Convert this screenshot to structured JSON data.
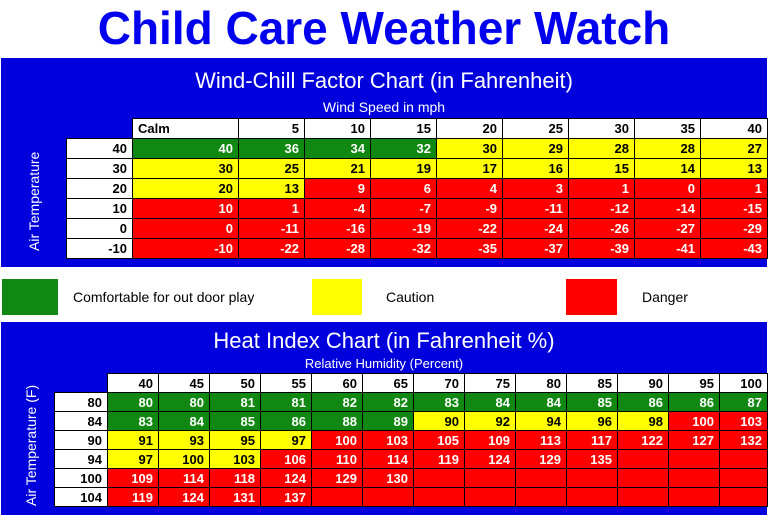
{
  "title": "Child Care Weather Watch",
  "colors": {
    "comfortable": "#118811",
    "caution": "#ffff00",
    "danger": "#ff0000",
    "header_blue": "#0000dd"
  },
  "wind_chill": {
    "title": "Wind-Chill Factor Chart (in Fahrenheit)",
    "subtitle": "Wind Speed in mph",
    "row_label": "Air Temperature",
    "columns": [
      "Calm",
      "5",
      "10",
      "15",
      "20",
      "25",
      "30",
      "35",
      "40"
    ],
    "rows": [
      {
        "temp": "40",
        "values": [
          "40",
          "36",
          "34",
          "32",
          "30",
          "29",
          "28",
          "28",
          "27"
        ],
        "levels": [
          "g",
          "g",
          "g",
          "g",
          "y",
          "y",
          "y",
          "y",
          "y"
        ]
      },
      {
        "temp": "30",
        "values": [
          "30",
          "25",
          "21",
          "19",
          "17",
          "16",
          "15",
          "14",
          "13"
        ],
        "levels": [
          "y",
          "y",
          "y",
          "y",
          "y",
          "y",
          "y",
          "y",
          "y"
        ]
      },
      {
        "temp": "20",
        "values": [
          "20",
          "13",
          "9",
          "6",
          "4",
          "3",
          "1",
          "0",
          "1"
        ],
        "levels": [
          "y",
          "y",
          "r",
          "r",
          "r",
          "r",
          "r",
          "r",
          "r"
        ]
      },
      {
        "temp": "10",
        "values": [
          "10",
          "1",
          "-4",
          "-7",
          "-9",
          "-11",
          "-12",
          "-14",
          "-15"
        ],
        "levels": [
          "r",
          "r",
          "r",
          "r",
          "r",
          "r",
          "r",
          "r",
          "r"
        ]
      },
      {
        "temp": "0",
        "values": [
          "0",
          "-11",
          "-16",
          "-19",
          "-22",
          "-24",
          "-26",
          "-27",
          "-29"
        ],
        "levels": [
          "r",
          "r",
          "r",
          "r",
          "r",
          "r",
          "r",
          "r",
          "r"
        ]
      },
      {
        "temp": "-10",
        "values": [
          "-10",
          "-22",
          "-28",
          "-32",
          "-35",
          "-37",
          "-39",
          "-41",
          "-43"
        ],
        "levels": [
          "r",
          "r",
          "r",
          "r",
          "r",
          "r",
          "r",
          "r",
          "r"
        ]
      }
    ]
  },
  "legend": {
    "comfortable": "Comfortable for out door play",
    "caution": "Caution",
    "danger": "Danger"
  },
  "heat_index": {
    "title": "Heat Index Chart (in Fahrenheit %)",
    "subtitle": "Relative Humidity (Percent)",
    "row_label": "Air Temperature (F)",
    "columns": [
      "40",
      "45",
      "50",
      "55",
      "60",
      "65",
      "70",
      "75",
      "80",
      "85",
      "90",
      "95",
      "100"
    ],
    "rows": [
      {
        "temp": "80",
        "values": [
          "80",
          "80",
          "81",
          "81",
          "82",
          "82",
          "83",
          "84",
          "84",
          "85",
          "86",
          "86",
          "87"
        ],
        "levels": [
          "g",
          "g",
          "g",
          "g",
          "g",
          "g",
          "g",
          "g",
          "g",
          "g",
          "g",
          "g",
          "g"
        ]
      },
      {
        "temp": "84",
        "values": [
          "83",
          "84",
          "85",
          "86",
          "88",
          "89",
          "90",
          "92",
          "94",
          "96",
          "98",
          "100",
          "103"
        ],
        "levels": [
          "g",
          "g",
          "g",
          "g",
          "g",
          "g",
          "y",
          "y",
          "y",
          "y",
          "y",
          "r",
          "r"
        ]
      },
      {
        "temp": "90",
        "values": [
          "91",
          "93",
          "95",
          "97",
          "100",
          "103",
          "105",
          "109",
          "113",
          "117",
          "122",
          "127",
          "132"
        ],
        "levels": [
          "y",
          "y",
          "y",
          "y",
          "r",
          "r",
          "r",
          "r",
          "r",
          "r",
          "r",
          "r",
          "r"
        ]
      },
      {
        "temp": "94",
        "values": [
          "97",
          "100",
          "103",
          "106",
          "110",
          "114",
          "119",
          "124",
          "129",
          "135",
          "",
          "",
          ""
        ],
        "levels": [
          "y",
          "y",
          "y",
          "r",
          "r",
          "r",
          "r",
          "r",
          "r",
          "r",
          "r",
          "r",
          "r"
        ]
      },
      {
        "temp": "100",
        "values": [
          "109",
          "114",
          "118",
          "124",
          "129",
          "130",
          "",
          "",
          "",
          "",
          "",
          "",
          ""
        ],
        "levels": [
          "r",
          "r",
          "r",
          "r",
          "r",
          "r",
          "r",
          "r",
          "r",
          "r",
          "r",
          "r",
          "r"
        ]
      },
      {
        "temp": "104",
        "values": [
          "119",
          "124",
          "131",
          "137",
          "",
          "",
          "",
          "",
          "",
          "",
          "",
          "",
          ""
        ],
        "levels": [
          "r",
          "r",
          "r",
          "r",
          "r",
          "r",
          "r",
          "r",
          "r",
          "r",
          "r",
          "r",
          "r"
        ]
      }
    ]
  }
}
